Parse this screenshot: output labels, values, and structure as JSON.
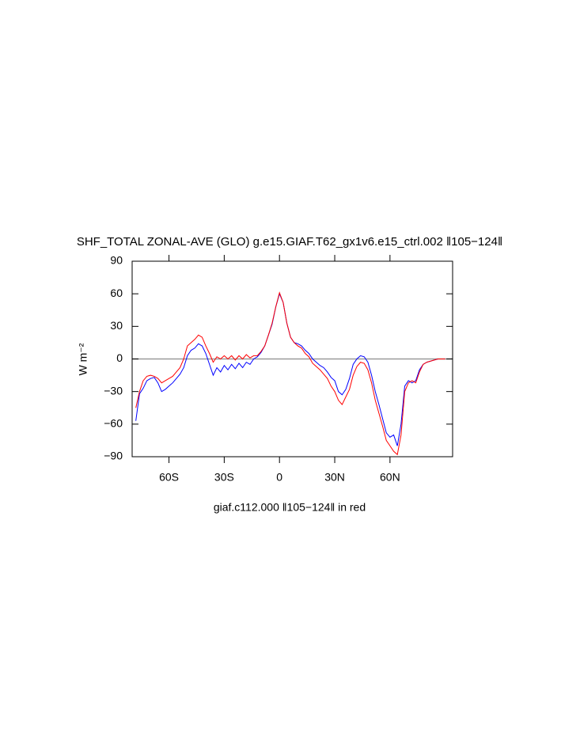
{
  "chart_data": {
    "type": "line",
    "title": "SHF_TOTAL ZONAL-AVE (GLO) g.e15.GIAF.T62_gx1v6.e15_ctrl.002 ‖105−124‖",
    "xlabel": "giaf.c112.000 ‖105−124‖ in red",
    "ylabel": "W m⁻²",
    "x": [
      -78,
      -76,
      -74,
      -72,
      -70,
      -68,
      -66,
      -64,
      -62,
      -60,
      -58,
      -56,
      -54,
      -52,
      -50,
      -48,
      -46,
      -44,
      -42,
      -40,
      -38,
      -36,
      -34,
      -32,
      -30,
      -28,
      -26,
      -24,
      -22,
      -20,
      -18,
      -16,
      -14,
      -12,
      -10,
      -8,
      -6,
      -4,
      -2,
      0,
      2,
      4,
      6,
      8,
      10,
      12,
      14,
      16,
      18,
      20,
      22,
      24,
      26,
      28,
      30,
      32,
      34,
      36,
      38,
      40,
      42,
      44,
      46,
      48,
      50,
      52,
      54,
      56,
      58,
      60,
      62,
      64,
      66,
      68,
      70,
      72,
      74,
      76,
      78,
      80,
      82,
      84,
      86,
      88,
      90
    ],
    "series": [
      {
        "color": "#0000ff",
        "values": [
          -57,
          -32,
          -27,
          -20,
          -18,
          -17,
          -22,
          -30,
          -28,
          -25,
          -22,
          -18,
          -14,
          -8,
          3,
          8,
          10,
          14,
          12,
          5,
          -5,
          -15,
          -8,
          -12,
          -6,
          -10,
          -5,
          -9,
          -4,
          -8,
          -3,
          -5,
          0,
          2,
          6,
          12,
          22,
          32,
          48,
          60,
          52,
          33,
          20,
          15,
          14,
          12,
          8,
          5,
          0,
          -3,
          -6,
          -8,
          -12,
          -17,
          -20,
          -30,
          -33,
          -28,
          -18,
          -5,
          0,
          3,
          2,
          -3,
          -15,
          -30,
          -42,
          -55,
          -68,
          -72,
          -70,
          -80,
          -60,
          -25,
          -20,
          -22,
          -20,
          -10,
          -5,
          -3,
          -2,
          -1,
          0,
          0,
          0
        ]
      },
      {
        "color": "#ff0000",
        "values": [
          -45,
          -30,
          -20,
          -16,
          -15,
          -16,
          -18,
          -22,
          -20,
          -18,
          -16,
          -12,
          -8,
          0,
          12,
          15,
          18,
          22,
          20,
          12,
          5,
          -3,
          2,
          0,
          3,
          0,
          3,
          -1,
          3,
          0,
          4,
          1,
          3,
          3,
          7,
          12,
          22,
          33,
          48,
          61,
          52,
          33,
          20,
          15,
          12,
          10,
          5,
          2,
          -4,
          -7,
          -10,
          -14,
          -18,
          -25,
          -30,
          -38,
          -42,
          -35,
          -28,
          -15,
          -7,
          -3,
          -4,
          -10,
          -22,
          -38,
          -50,
          -62,
          -75,
          -80,
          -85,
          -88,
          -70,
          -30,
          -22,
          -20,
          -22,
          -12,
          -5,
          -3,
          -2,
          -1,
          0,
          0,
          0
        ]
      }
    ],
    "xlim": [
      -80,
      94
    ],
    "xticks": [
      {
        "value": -60,
        "label": "60S"
      },
      {
        "value": -30,
        "label": "30S"
      },
      0,
      {
        "value": 30,
        "label": "30N"
      },
      {
        "value": 60,
        "label": "60N"
      }
    ],
    "ylim": [
      -90,
      90
    ],
    "yticks": [
      {
        "value": -90,
        "label": "−90"
      },
      {
        "value": -60,
        "label": "−60"
      },
      {
        "value": -30,
        "label": "−30"
      },
      0,
      30,
      60,
      90
    ],
    "reference_line": 0
  }
}
